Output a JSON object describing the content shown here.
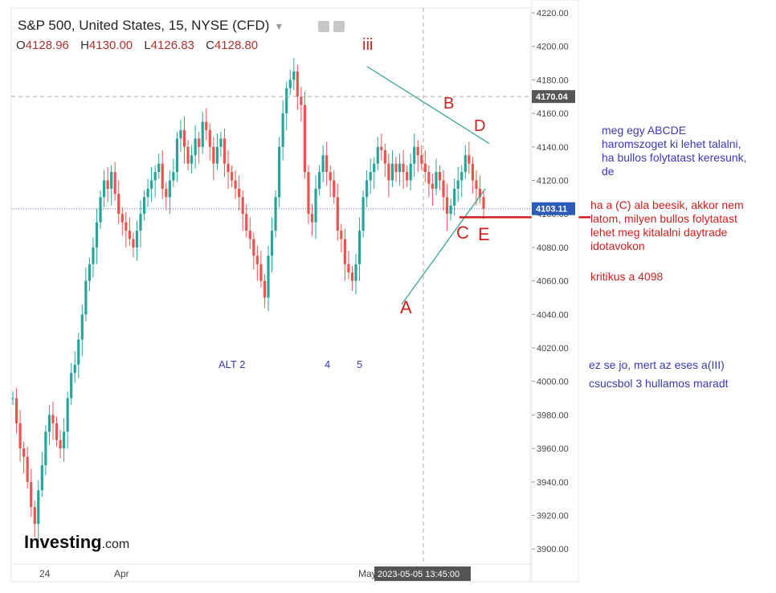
{
  "header": {
    "title": "S&P 500, United States, 15, NYSE (CFD)",
    "ohlc": [
      {
        "k": "O",
        "v": "4128.96"
      },
      {
        "k": "H",
        "v": "4130.00"
      },
      {
        "k": "L",
        "v": "4126.83"
      },
      {
        "k": "C",
        "v": "4128.80"
      }
    ]
  },
  "chart_data": {
    "type": "line",
    "title": "",
    "y_ticks": [
      "4220.00",
      "4200.00",
      "4180.00",
      "4160.00",
      "4140.00",
      "4120.00",
      "4100.00",
      "4080.00",
      "4060.00",
      "4040.00",
      "4020.00",
      "4000.00",
      "3980.00",
      "3960.00",
      "3940.00",
      "3920.00",
      "3900.00"
    ],
    "ylim": [
      3895,
      4222
    ],
    "x_ticks": [
      "24",
      "Apr",
      "May"
    ],
    "crosshair_x_label": "2023-05-05 13:45:00",
    "crosshair_y_label": "4170.04",
    "last_price_label": "4103.11",
    "series": [
      {
        "values": [
          3990,
          3975,
          3960,
          3955,
          3940,
          3925,
          3915,
          3935,
          3950,
          3970,
          3980,
          3975,
          3965,
          3960,
          3970,
          3990,
          4005,
          4010,
          4025,
          4040,
          4060,
          4070,
          4080,
          4095,
          4110,
          4120,
          4115,
          4125,
          4112,
          4100,
          4095,
          4090,
          4085,
          4080,
          4090,
          4100,
          4110,
          4115,
          4120,
          4125,
          4130,
          4115,
          4110,
          4120,
          4125,
          4145,
          4150,
          4140,
          4130,
          4135,
          4145,
          4140,
          4155,
          4150,
          4140,
          4130,
          4140,
          4145,
          4130,
          4125,
          4120,
          4115,
          4110,
          4100,
          4090,
          4085,
          4075,
          4070,
          4060,
          4050,
          4075,
          4090,
          4110,
          4140,
          4160,
          4175,
          4180,
          4185,
          4170,
          4165,
          4125,
          4100,
          4095,
          4115,
          4125,
          4135,
          4125,
          4120,
          4110,
          4090,
          4085,
          4070,
          4065,
          4060,
          4070,
          4090,
          4110,
          4120,
          4125,
          4130,
          4140,
          4138,
          4130,
          4120,
          4130,
          4125,
          4130,
          4125,
          4120,
          4130,
          4140,
          4135,
          4130,
          4125,
          4118,
          4115,
          4125,
          4120,
          4110,
          4100,
          4105,
          4115,
          4120,
          4125,
          4135,
          4130,
          4120,
          4115,
          4110,
          4103
        ],
        "x_dates": "2023-03-23 to 2023-05-05"
      }
    ],
    "annotations": {
      "wave_labels": [
        "iii",
        "A",
        "B",
        "C",
        "D",
        "E"
      ],
      "triangle_points": {
        "iii": 4188,
        "A": 4050,
        "B_line_end": 4142,
        "C": 4098
      },
      "critical_level": 4098,
      "alt_labels": [
        "ALT 2",
        "4",
        "5"
      ]
    }
  },
  "notes": {
    "blue1": [
      "meg egy ABCDE",
      "haromszoget ki lehet talalni,",
      "ha bullos folytatast keresunk,",
      "de"
    ],
    "red1": [
      "ha a (C) ala beesik, akkor nem",
      "latom, milyen bullos folytatast",
      "lehet meg kitalalni daytrade",
      "idotavokon"
    ],
    "red2": "kritikus a 4098",
    "blue2": [
      "ez se jo, mert az eses a(III)",
      "csucsbol 3 hullamos maradt"
    ]
  },
  "logo": {
    "main": "Investing",
    "suffix": ".com"
  },
  "colors": {
    "candle": "#26a69a",
    "candle_down": "#ef5350",
    "wave": "#d01e1e",
    "triangle": "#2a9d8f",
    "blue_text": "#3a3ab2"
  }
}
